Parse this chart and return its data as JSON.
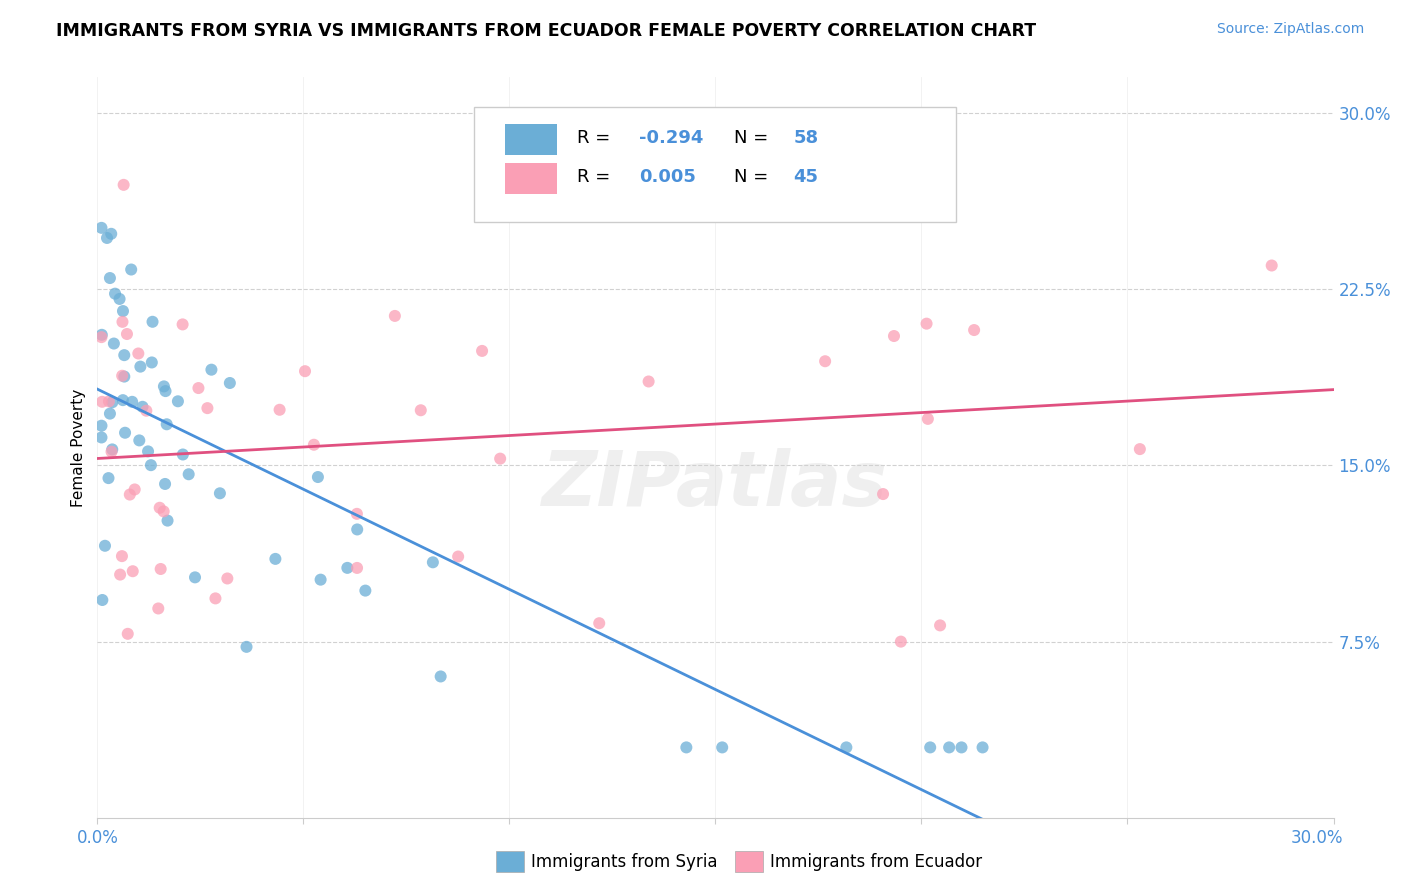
{
  "title": "IMMIGRANTS FROM SYRIA VS IMMIGRANTS FROM ECUADOR FEMALE POVERTY CORRELATION CHART",
  "source": "Source: ZipAtlas.com",
  "ylabel": "Female Poverty",
  "ytick_labels": [
    "7.5%",
    "15.0%",
    "22.5%",
    "30.0%"
  ],
  "ytick_values": [
    0.075,
    0.15,
    0.225,
    0.3
  ],
  "xlim": [
    0.0,
    0.3
  ],
  "ylim": [
    0.0,
    0.315
  ],
  "syria_color": "#6baed6",
  "ecuador_color": "#fa9fb5",
  "syria_line_color": "#4a90d9",
  "ecuador_line_color": "#e05080",
  "syria_R": -0.294,
  "syria_N": 58,
  "ecuador_R": 0.005,
  "ecuador_N": 45,
  "watermark": "ZIPatlas",
  "blue_label_color": "#4a90d9"
}
